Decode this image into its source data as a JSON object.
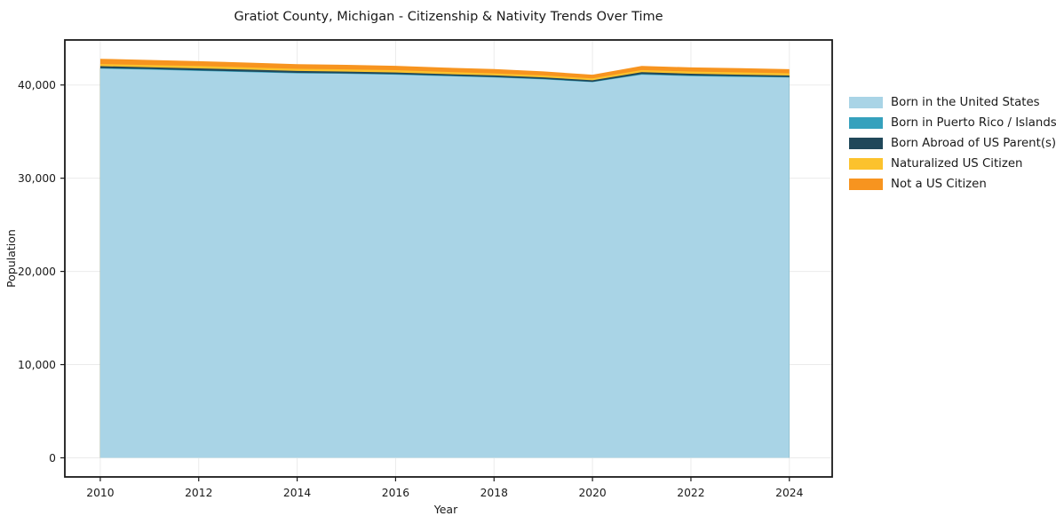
{
  "chart_data": {
    "type": "area",
    "stacked": true,
    "title": "Gratiot County, Michigan - Citizenship & Nativity Trends Over Time",
    "xlabel": "Year",
    "ylabel": "Population",
    "x": [
      2010,
      2011,
      2012,
      2013,
      2014,
      2015,
      2016,
      2017,
      2018,
      2019,
      2020,
      2021,
      2022,
      2023,
      2024
    ],
    "series": [
      {
        "name": "Born in the United States",
        "color": "#a9d4e6",
        "values": [
          41750,
          41650,
          41500,
          41380,
          41250,
          41200,
          41100,
          40950,
          40800,
          40600,
          40300,
          41100,
          40950,
          40870,
          40800
        ]
      },
      {
        "name": "Born in Puerto Rico / Islands",
        "color": "#35a1bd",
        "values": [
          60,
          55,
          65,
          60,
          55,
          50,
          60,
          55,
          50,
          45,
          40,
          70,
          65,
          60,
          55
        ]
      },
      {
        "name": "Born Abroad of US Parent(s)",
        "color": "#20485a",
        "values": [
          210,
          200,
          220,
          210,
          200,
          190,
          180,
          170,
          180,
          170,
          160,
          200,
          190,
          170,
          160
        ]
      },
      {
        "name": "Naturalized US Citizen",
        "color": "#fcc22d",
        "values": [
          230,
          240,
          250,
          240,
          230,
          240,
          250,
          230,
          220,
          210,
          200,
          230,
          240,
          250,
          240
        ]
      },
      {
        "name": "Not a US Citizen",
        "color": "#f7941f",
        "values": [
          560,
          540,
          520,
          510,
          500,
          480,
          470,
          460,
          450,
          430,
          400,
          450,
          440,
          450,
          440
        ]
      }
    ],
    "xticks": [
      2010,
      2012,
      2014,
      2016,
      2018,
      2020,
      2022,
      2024
    ],
    "xtick_labels": [
      "2010",
      "2012",
      "2014",
      "2016",
      "2018",
      "2020",
      "2022",
      "2024"
    ],
    "yticks": [
      0,
      10000,
      20000,
      30000,
      40000
    ],
    "ytick_labels": [
      "0",
      "10,000",
      "20,000",
      "30,000",
      "40,000"
    ],
    "xlim": [
      2009.28,
      2024.87
    ],
    "ylim": [
      -2050,
      44830
    ],
    "grid": true,
    "grid_color": "#ebebeb",
    "spine_color": "#1a1a1a",
    "legend_position": "right"
  }
}
